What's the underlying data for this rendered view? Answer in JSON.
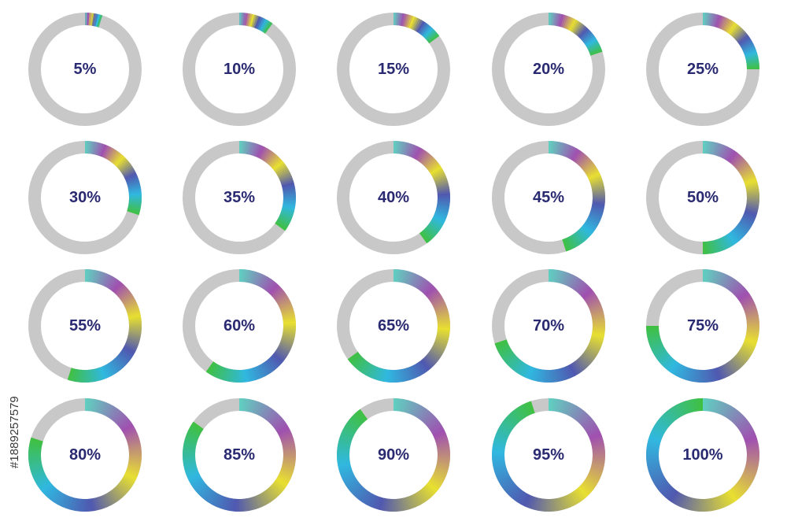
{
  "watermark_id": "#188925757­9",
  "rings": [
    {
      "label": "5%",
      "progress": 0.05
    },
    {
      "label": "10%",
      "progress": 0.1
    },
    {
      "label": "15%",
      "progress": 0.15
    },
    {
      "label": "20%",
      "progress": 0.2
    },
    {
      "label": "25%",
      "progress": 0.25
    },
    {
      "label": "30%",
      "progress": 0.3
    },
    {
      "label": "35%",
      "progress": 0.35
    },
    {
      "label": "40%",
      "progress": 0.4
    },
    {
      "label": "45%",
      "progress": 0.45
    },
    {
      "label": "50%",
      "progress": 0.5
    },
    {
      "label": "55%",
      "progress": 0.55
    },
    {
      "label": "60%",
      "progress": 0.6
    },
    {
      "label": "65%",
      "progress": 0.65
    },
    {
      "label": "70%",
      "progress": 0.7
    },
    {
      "label": "75%",
      "progress": 0.75
    },
    {
      "label": "80%",
      "progress": 0.8
    },
    {
      "label": "85%",
      "progress": 0.85
    },
    {
      "label": "90%",
      "progress": 0.9
    },
    {
      "label": "95%",
      "progress": 0.95
    },
    {
      "label": "100%",
      "progress": 1.0
    }
  ],
  "colors": {
    "track": "#c8c8c8",
    "label": "#2a2a72",
    "gradient": [
      "#5fd0c0",
      "#a050b0",
      "#e8e030",
      "#5058b0",
      "#30b8e0",
      "#40c040"
    ]
  }
}
